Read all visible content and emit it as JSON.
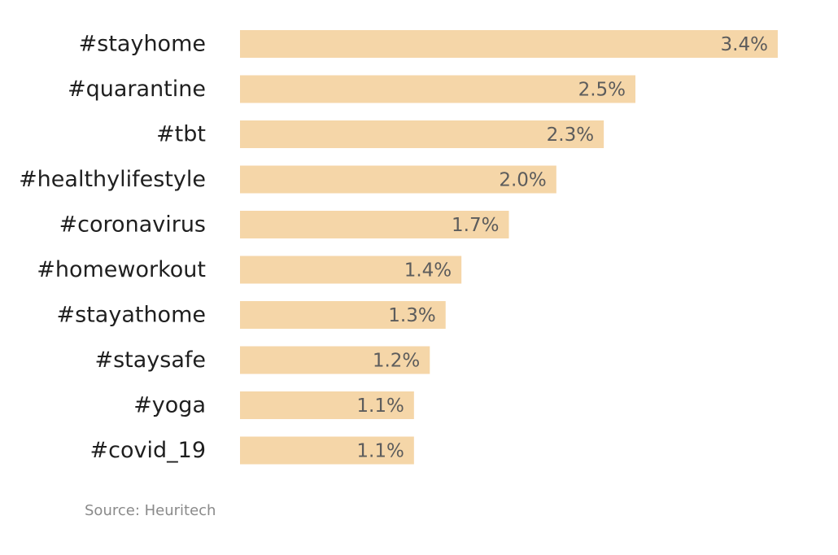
{
  "chart_data": {
    "type": "bar",
    "orientation": "horizontal",
    "categories": [
      "#stayhome",
      "#quarantine",
      "#tbt",
      "#healthylifestyle",
      "#coronavirus",
      "#homeworkout",
      "#stayathome",
      "#staysafe",
      "#yoga",
      "#covid_19"
    ],
    "values": [
      3.4,
      2.5,
      2.3,
      2.0,
      1.7,
      1.4,
      1.3,
      1.2,
      1.1,
      1.1
    ],
    "value_labels": [
      "3.4%",
      "2.5%",
      "2.3%",
      "2.0%",
      "1.7%",
      "1.4%",
      "1.3%",
      "1.2%",
      "1.1%",
      "1.1%"
    ],
    "bar_color": "#f5d6a8",
    "grid": false,
    "legend": "none"
  },
  "source": "Source: Heuritech"
}
